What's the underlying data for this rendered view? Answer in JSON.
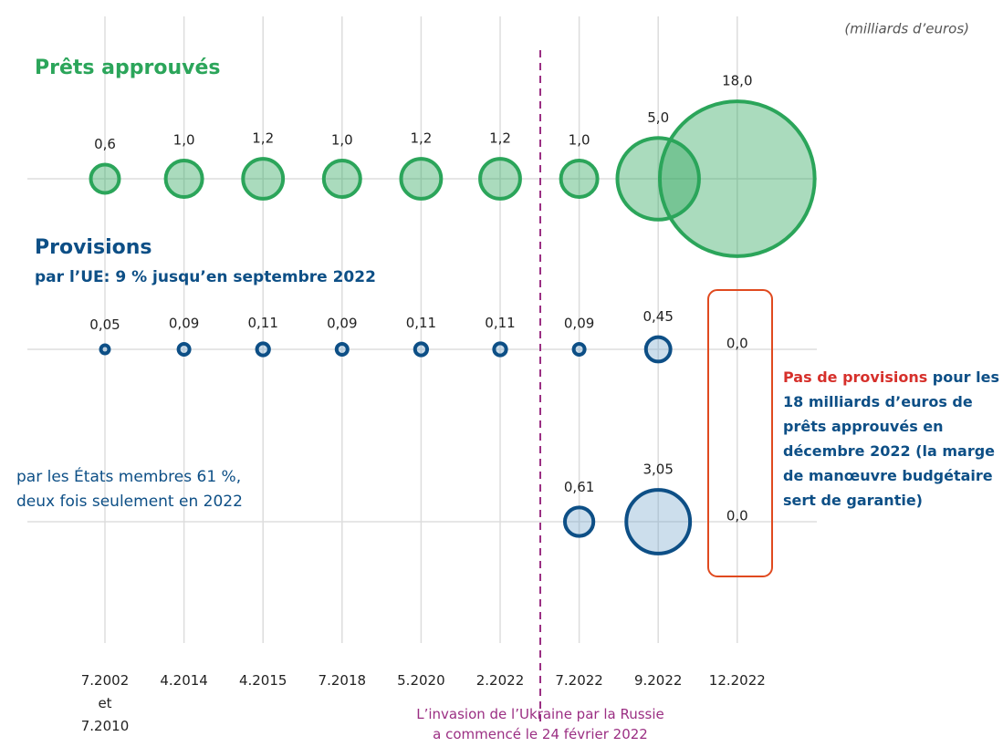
{
  "chart_data": {
    "type": "bubble",
    "unit_note": "(milliards d’euros)",
    "categories": [
      "7.2002\net\n7.2010",
      "4.2014",
      "4.2015",
      "7.2018",
      "5.2020",
      "2.2022",
      "7.2022",
      "9.2022",
      "12.2022"
    ],
    "series": [
      {
        "name": "Prêts approuvés",
        "color": "#2ba55a",
        "values": [
          0.6,
          1.0,
          1.2,
          1.0,
          1.2,
          1.2,
          1.0,
          5.0,
          18.0
        ],
        "value_labels": [
          "0,6",
          "1,0",
          "1,2",
          "1,0",
          "1,2",
          "1,2",
          "1,0",
          "5,0",
          "18,0"
        ]
      },
      {
        "name": "Provisions",
        "subtitle": "par l’UE: 9 % jusqu’en septembre 2022",
        "color": "#0d4f86",
        "values": [
          0.05,
          0.09,
          0.11,
          0.09,
          0.11,
          0.11,
          0.09,
          0.45,
          0.0
        ],
        "value_labels": [
          "0,05",
          "0,09",
          "0,11",
          "0,09",
          "0,11",
          "0,11",
          "0,09",
          "0,45",
          "0,0"
        ]
      },
      {
        "name": "par les États membres  61 %,\ndeux fois seulement en 2022",
        "color": "#0d4f86",
        "values": [
          null,
          null,
          null,
          null,
          null,
          null,
          0.61,
          3.05,
          0.0
        ],
        "value_labels": [
          null,
          null,
          null,
          null,
          null,
          null,
          "0,61",
          "3,05",
          "0,0"
        ]
      }
    ],
    "annotation": "L’invasion de l’Ukraine par la Russie\na commencé le 24 février 2022",
    "note": {
      "highlight": "Pas de provisions",
      "text": " pour les 18 milliards d’euros de prêts approuvés en décembre 2022 (la marge de manœuvre budgétaire sert de garantie)"
    }
  }
}
